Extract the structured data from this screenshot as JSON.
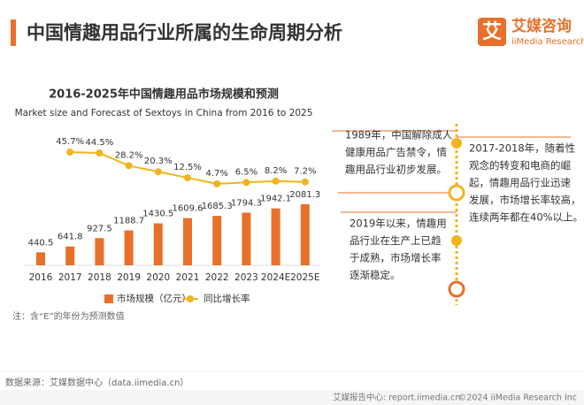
{
  "header": {
    "title": "中国情趣用品行业所属的生命周期分析"
  },
  "logo": {
    "mark": "艾",
    "name": "艾媒咨询",
    "sub": "iiMedia Research"
  },
  "chart_data": {
    "type": "bar",
    "title": "2016-2025年中国情趣用品市场规模和预测",
    "subtitle": "Market size and Forecast of Sextoys in China from 2016 to 2025",
    "categories": [
      "2016",
      "2017",
      "2018",
      "2019",
      "2020",
      "2021",
      "2022",
      "2023",
      "2024E",
      "2025E"
    ],
    "series": [
      {
        "name": "市场规模（亿元）",
        "type": "bar",
        "color": "#e8702a",
        "values": [
          440.5,
          641.8,
          927.5,
          1188.7,
          1430.5,
          1609.6,
          1685.3,
          1794.3,
          1942.1,
          2081.3
        ]
      },
      {
        "name": "同比增长率",
        "type": "line",
        "color": "#f2b41c",
        "values": [
          null,
          45.7,
          44.5,
          28.2,
          20.3,
          12.5,
          4.7,
          6.5,
          8.2,
          7.2
        ],
        "value_labels": [
          null,
          "45.7%",
          "44.5%",
          "28.2%",
          "20.3%",
          "12.5%",
          "4.7%",
          "6.5%",
          "8.2%",
          "7.2%"
        ]
      }
    ]
  },
  "note": "注：含“E”的年份为预测数值",
  "timeline": {
    "items": [
      {
        "lines": [
          "1989年，中国解除成人",
          "健康用品广告禁令，情",
          "趣用品行业初步发展。"
        ]
      },
      {
        "lines": [
          "2017-2018年，随着性",
          "观念的转变和电商的崛",
          "起，情趣用品行业迅速",
          "发展，市场增长率较高，",
          "连续两年都在40%以上。"
        ]
      },
      {
        "lines": [
          "2019年以来，情趣用",
          "品行业在生产上已趋",
          "于成熟，市场增长率",
          "逐渐稳定。"
        ]
      }
    ]
  },
  "source": "数据来源：艾媒数据中心（data.iimedia.cn）",
  "footer": {
    "site": "艾媒报告中心: report.iimedia.cn",
    "copyright": "©2024  iiMedia Research Inc"
  }
}
